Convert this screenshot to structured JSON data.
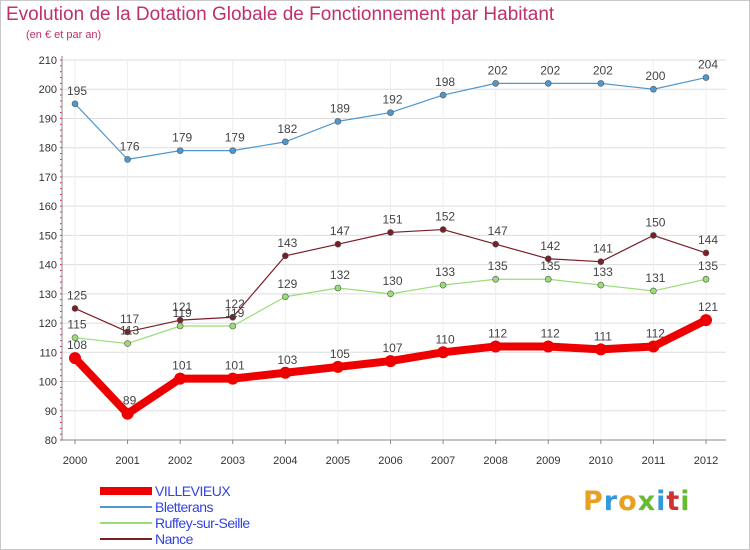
{
  "header": {
    "title": "Evolution de la Dotation Globale de Fonctionnement par Habitant",
    "subtitle": "(en € et par an)"
  },
  "brand": {
    "text": "Proxiti",
    "colors": [
      "#e8a020",
      "#3399dd",
      "#e8a020",
      "#66bb33",
      "#3399dd",
      "#cc3333",
      "#66bb33"
    ]
  },
  "colors": {
    "title": "#c0306a",
    "legend_text": "#3344dd",
    "axis": "#888888",
    "grid": "#dddddd",
    "tick_text": "#333333",
    "label_text": "#444444"
  },
  "chart_data": {
    "type": "line",
    "title": "Evolution de la Dotation Globale de Fonctionnement par Habitant",
    "subtitle": "(en € et par an)",
    "xlabel": "",
    "ylabel": "",
    "x": [
      "2000",
      "2001",
      "2002",
      "2003",
      "2004",
      "2005",
      "2006",
      "2007",
      "2008",
      "2009",
      "2010",
      "2011",
      "2012"
    ],
    "ylim": [
      80,
      210
    ],
    "yticks": [
      80,
      90,
      100,
      110,
      120,
      130,
      140,
      150,
      160,
      170,
      180,
      190,
      200,
      210
    ],
    "grid": true,
    "legend_position": "bottom-left",
    "series": [
      {
        "name": "VILLEVIEUX",
        "color": "#ee0000",
        "emphasis": true,
        "values": [
          108,
          89,
          101,
          101,
          103,
          105,
          107,
          110,
          112,
          112,
          111,
          112,
          121
        ]
      },
      {
        "name": "Bletterans",
        "color": "#4f97cf",
        "emphasis": false,
        "values": [
          195,
          176,
          179,
          179,
          182,
          189,
          192,
          198,
          202,
          202,
          202,
          200,
          204
        ]
      },
      {
        "name": "Ruffey-sur-Seille",
        "color": "#99dd77",
        "emphasis": false,
        "values": [
          115,
          113,
          119,
          119,
          129,
          132,
          130,
          133,
          135,
          135,
          133,
          131,
          135
        ]
      },
      {
        "name": "Nance",
        "color": "#7a1f25",
        "emphasis": false,
        "values": [
          125,
          117,
          121,
          122,
          143,
          147,
          151,
          152,
          147,
          142,
          141,
          150,
          144
        ]
      }
    ]
  }
}
